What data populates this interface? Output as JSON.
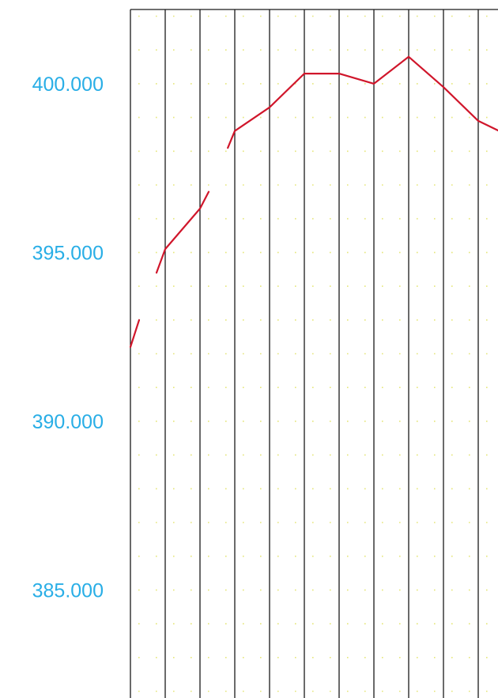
{
  "chart_data": {
    "type": "line",
    "grid": "vertical lines with dotted horizontal gridlines",
    "ylim": [
      381.8,
      402.2
    ],
    "y_ticks": [
      "385.000",
      "390.000",
      "395.000",
      "400.000"
    ],
    "columns": 11,
    "series": [
      {
        "segments": [
          [
            [
              0.0,
              392.2
            ],
            [
              0.25,
              393.0
            ]
          ],
          [
            [
              0.75,
              394.4
            ],
            [
              1.0,
              395.1
            ],
            [
              2.0,
              396.3
            ],
            [
              2.25,
              396.8
            ]
          ],
          [
            [
              2.8,
              398.1
            ],
            [
              3.0,
              398.6
            ],
            [
              4.0,
              399.3
            ],
            [
              5.0,
              400.3
            ],
            [
              6.0,
              400.3
            ],
            [
              7.0,
              400.0
            ],
            [
              8.0,
              400.8
            ],
            [
              9.0,
              399.9
            ],
            [
              10.0,
              398.9
            ],
            [
              10.6,
              398.6
            ]
          ]
        ]
      }
    ],
    "colors": {
      "line": "#d0162b",
      "tick_label": "#29aee6",
      "grid_vertical": "#1a1a1a",
      "grid_dots": "#e5e67a"
    }
  }
}
